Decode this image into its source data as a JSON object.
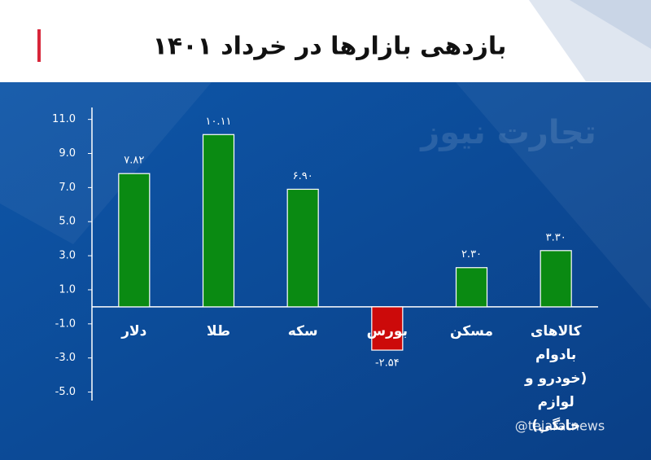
{
  "chart_data": {
    "type": "bar",
    "title": "بازدهی بازارها در خرداد ۱۴۰۱",
    "watermark": "تجارت نیوز",
    "handle": "@tejaratnews",
    "categories": [
      "دلار",
      "طلا",
      "سکه",
      "بورس",
      "مسکن",
      "کالاهای بادوام (خودرو و لوازم خانگی)"
    ],
    "values": [
      7.82,
      10.11,
      6.9,
      -2.54,
      2.3,
      3.3
    ],
    "value_labels": [
      "۷.۸۲",
      "۱۰.۱۱",
      "۶.۹۰",
      "-۲.۵۴",
      "۲.۳۰",
      "۳.۳۰"
    ],
    "color": "#0a8a12",
    "negative_color": "#cc0a0a",
    "ylim": [
      -5.5,
      11.7
    ],
    "yticks": [
      {
        "value": 11,
        "label": "11.0"
      },
      {
        "value": 9,
        "label": "9.0"
      },
      {
        "value": 7,
        "label": "7.0"
      },
      {
        "value": 5,
        "label": "5.0"
      },
      {
        "value": 3,
        "label": "3.0"
      },
      {
        "value": 1,
        "label": "1.0"
      },
      {
        "value": -1,
        "label": "-1.0"
      },
      {
        "value": -3,
        "label": "-3.0"
      },
      {
        "value": -5,
        "label": "-5.0"
      }
    ],
    "grid": false
  }
}
